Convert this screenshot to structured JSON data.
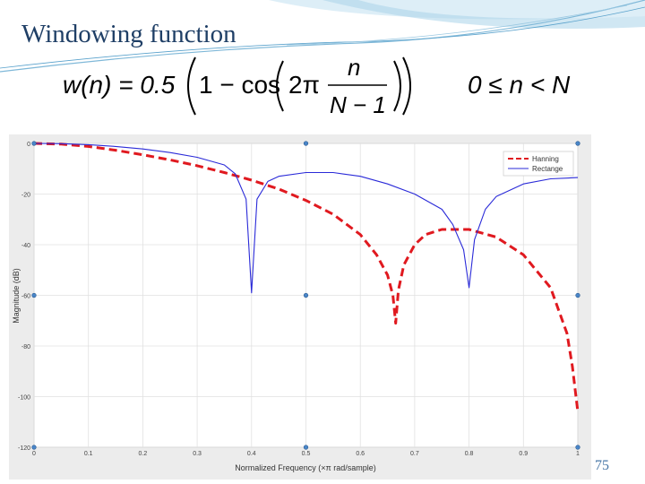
{
  "slide": {
    "title": "Windowing function",
    "page_number": "75",
    "formula": {
      "lhs": "w(n) = 0.5",
      "one_minus_cos": "1 − cos",
      "two_pi": "2π",
      "numerator": "n",
      "denominator": "N − 1",
      "condition": "0 ≤ n < N"
    }
  },
  "chart_data": {
    "type": "line",
    "xlabel": "Normalized Frequency  (×π rad/sample)",
    "ylabel": "Magnitude (dB)",
    "xlim": [
      0,
      1
    ],
    "ylim": [
      -120,
      0
    ],
    "x_ticks": [
      "0",
      "0.1",
      "0.2",
      "0.3",
      "0.4",
      "0.5",
      "0.6",
      "0.7",
      "0.8",
      "0.9",
      "1"
    ],
    "y_ticks": [
      "0",
      "-20",
      "-40",
      "-60",
      "-80",
      "-100",
      "-120"
    ],
    "grid": true,
    "legend_position": "top-right",
    "series": [
      {
        "name": "Hanning",
        "color": "#e0191f",
        "style": "dashed",
        "x": [
          0,
          0.05,
          0.1,
          0.15,
          0.2,
          0.25,
          0.3,
          0.35,
          0.4,
          0.45,
          0.5,
          0.55,
          0.6,
          0.63,
          0.65,
          0.66,
          0.665,
          0.67,
          0.68,
          0.7,
          0.72,
          0.75,
          0.8,
          0.85,
          0.9,
          0.95,
          0.98,
          0.99,
          1.0
        ],
        "y": [
          0,
          -0.3,
          -1.2,
          -2.7,
          -4.5,
          -6.5,
          -8.8,
          -11.5,
          -14.5,
          -18,
          -22.5,
          -28,
          -36,
          -44,
          -52,
          -60,
          -71,
          -58,
          -48,
          -40,
          -36,
          -34,
          -34,
          -37,
          -44,
          -57,
          -75,
          -88,
          -106
        ]
      },
      {
        "name": "Rectange",
        "color": "#2a2ad8",
        "style": "solid",
        "x": [
          0,
          0.05,
          0.1,
          0.15,
          0.2,
          0.25,
          0.3,
          0.35,
          0.37,
          0.39,
          0.4,
          0.41,
          0.43,
          0.45,
          0.5,
          0.55,
          0.6,
          0.65,
          0.7,
          0.75,
          0.77,
          0.79,
          0.8,
          0.81,
          0.83,
          0.85,
          0.9,
          0.95,
          1.0
        ],
        "y": [
          0,
          -0.1,
          -0.5,
          -1.2,
          -2.2,
          -3.6,
          -5.5,
          -8.5,
          -12,
          -22,
          -59,
          -22,
          -15,
          -13,
          -11.5,
          -11.5,
          -13,
          -16,
          -20,
          -26,
          -32,
          -42,
          -57,
          -38,
          -26,
          -21,
          -16,
          -14,
          -13.5
        ]
      }
    ]
  }
}
